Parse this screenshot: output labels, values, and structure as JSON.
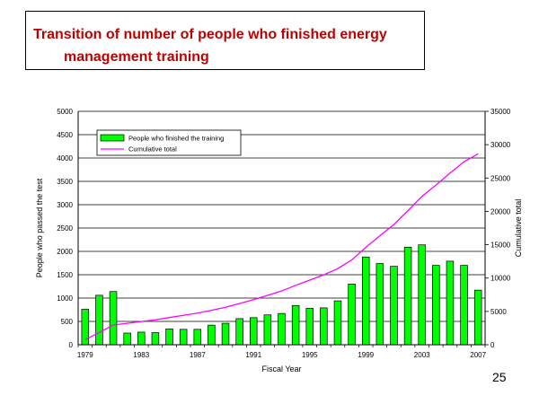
{
  "slide": {
    "title_line1": "Transition of number of people who finished energy",
    "title_line2": "management training",
    "page_number": "25"
  },
  "chart_data": {
    "type": "bar",
    "x": [
      1979,
      1980,
      1981,
      1982,
      1983,
      1984,
      1985,
      1986,
      1987,
      1988,
      1989,
      1990,
      1991,
      1992,
      1993,
      1994,
      1995,
      1996,
      1997,
      1998,
      1999,
      2000,
      2001,
      2002,
      2003,
      2004,
      2005,
      2006,
      2007
    ],
    "series": [
      {
        "name": "People who finished the training",
        "type": "bar",
        "axis": "left",
        "color": "#00ff00",
        "values": [
          760,
          1060,
          1140,
          250,
          270,
          260,
          340,
          330,
          330,
          420,
          460,
          560,
          580,
          640,
          670,
          840,
          780,
          790,
          940,
          1300,
          1880,
          1740,
          1680,
          2090,
          2140,
          1700,
          1790,
          1700,
          1170
        ]
      },
      {
        "name": "Cumulative total",
        "type": "line",
        "axis": "right",
        "color": "#ff00ff",
        "values": [
          760,
          1820,
          2960,
          3210,
          3480,
          3740,
          4080,
          4410,
          4740,
          5160,
          5620,
          6180,
          6760,
          7400,
          8070,
          8910,
          9690,
          10480,
          11420,
          12720,
          14600,
          16340,
          18020,
          20110,
          22250,
          23950,
          25740,
          27440,
          28610
        ]
      }
    ],
    "xlabel": "Fiscal Year",
    "ylabel": "People who passed the test",
    "y2label": "Cumulative total",
    "ylim": [
      0,
      5000
    ],
    "y2lim": [
      0,
      35000
    ],
    "yticks": [
      0,
      500,
      1000,
      1500,
      2000,
      2500,
      3000,
      3500,
      4000,
      4500,
      5000
    ],
    "y2ticks": [
      0,
      5000,
      10000,
      15000,
      20000,
      25000,
      30000,
      35000
    ],
    "xtick_labels": [
      "1979",
      "1983",
      "1987",
      "1991",
      "1995",
      "1999",
      "2003",
      "2007"
    ],
    "grid": true,
    "legend_position": "top-left"
  }
}
